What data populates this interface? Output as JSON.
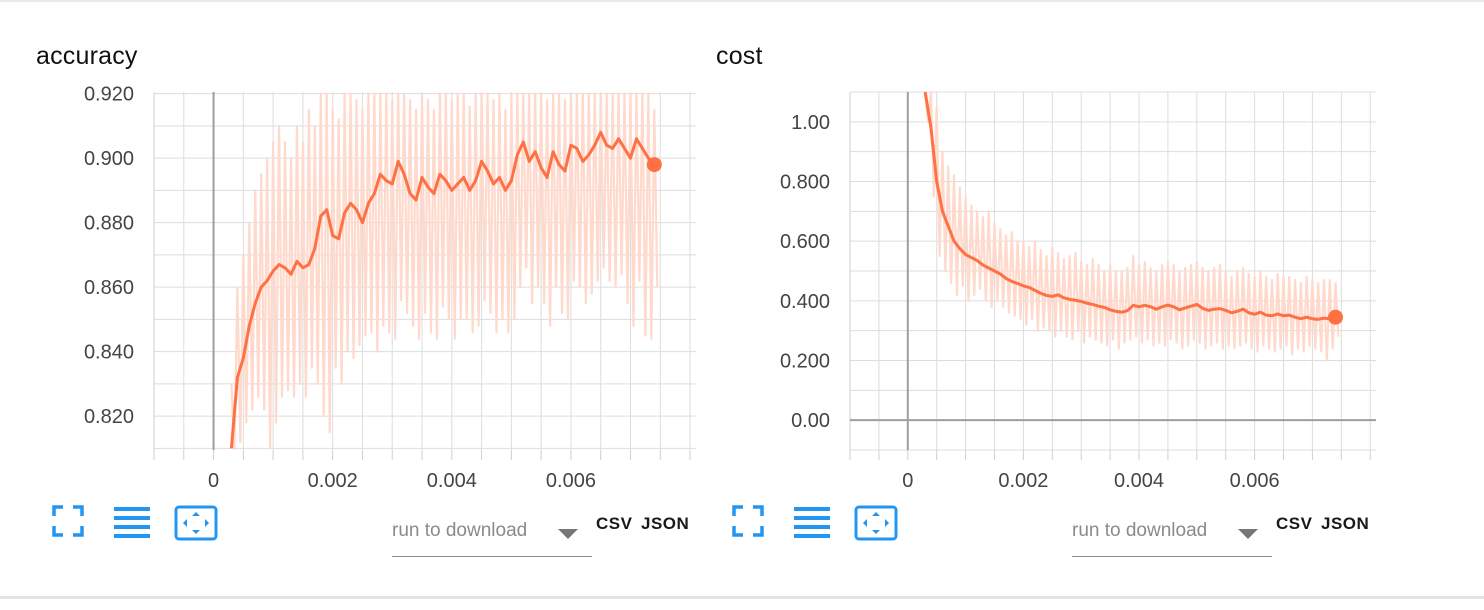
{
  "download": {
    "placeholder": "run to download",
    "csv_label": "CSV",
    "json_label": "JSON"
  },
  "icons": {
    "expand": "fullscreen-icon",
    "toggle_log": "menu-lines-icon",
    "fit_domain": "fit-domain-icon"
  },
  "colors": {
    "series": "#ff7043",
    "series_raw": "#ffd9cc",
    "grid": "#dddddd",
    "zero_axis": "#9e9e9e",
    "icon": "#2196f3"
  },
  "chart_data": [
    {
      "type": "line",
      "title": "accuracy",
      "xlabel": "",
      "ylabel": "",
      "xlim": [
        -0.001,
        0.0081
      ],
      "ylim": [
        0.8095,
        0.9205
      ],
      "x_ticks": [
        0,
        0.002,
        0.004,
        0.006
      ],
      "x_tick_labels": [
        "0",
        "0.002",
        "0.004",
        "0.006"
      ],
      "y_ticks": [
        0.82,
        0.84,
        0.86,
        0.88,
        0.9,
        0.92
      ],
      "y_tick_labels": [
        "0.820",
        "0.840",
        "0.860",
        "0.880",
        "0.900",
        "0.920"
      ],
      "grid": true,
      "series": [
        {
          "x": [
            0.0003,
            0.0004,
            0.0005,
            0.0006,
            0.0007,
            0.0008,
            0.0009,
            0.001,
            0.0011,
            0.0012,
            0.0013,
            0.0014,
            0.0015,
            0.0016,
            0.0017,
            0.0018,
            0.0019,
            0.002,
            0.0021,
            0.0022,
            0.0023,
            0.0024,
            0.0025,
            0.0026,
            0.0027,
            0.0028,
            0.0029,
            0.003,
            0.0031,
            0.0032,
            0.0033,
            0.0034,
            0.0035,
            0.0036,
            0.0037,
            0.0038,
            0.0039,
            0.004,
            0.0041,
            0.0042,
            0.0043,
            0.0044,
            0.0045,
            0.0046,
            0.0047,
            0.0048,
            0.0049,
            0.005,
            0.0051,
            0.0052,
            0.0053,
            0.0054,
            0.0055,
            0.0056,
            0.0057,
            0.0058,
            0.0059,
            0.006,
            0.0061,
            0.0062,
            0.0063,
            0.0064,
            0.0065,
            0.0066,
            0.0067,
            0.0068,
            0.0069,
            0.007,
            0.0071,
            0.0072,
            0.0073,
            0.0074
          ],
          "values": [
            0.81,
            0.832,
            0.838,
            0.848,
            0.855,
            0.86,
            0.862,
            0.865,
            0.867,
            0.866,
            0.864,
            0.868,
            0.866,
            0.867,
            0.872,
            0.882,
            0.884,
            0.876,
            0.875,
            0.883,
            0.886,
            0.884,
            0.88,
            0.886,
            0.889,
            0.895,
            0.893,
            0.892,
            0.899,
            0.895,
            0.889,
            0.887,
            0.894,
            0.891,
            0.889,
            0.895,
            0.893,
            0.89,
            0.892,
            0.894,
            0.89,
            0.893,
            0.899,
            0.896,
            0.892,
            0.894,
            0.89,
            0.893,
            0.901,
            0.905,
            0.899,
            0.902,
            0.897,
            0.894,
            0.902,
            0.898,
            0.896,
            0.904,
            0.903,
            0.899,
            0.901,
            0.904,
            0.908,
            0.904,
            0.903,
            0.906,
            0.903,
            0.9,
            0.906,
            0.903,
            0.9,
            0.898
          ],
          "raw_min": [
            0.8095,
            0.812,
            0.818,
            0.822,
            0.826,
            0.822,
            0.81,
            0.818,
            0.826,
            0.828,
            0.826,
            0.83,
            0.826,
            0.835,
            0.83,
            0.82,
            0.815,
            0.835,
            0.83,
            0.84,
            0.838,
            0.842,
            0.845,
            0.846,
            0.84,
            0.848,
            0.846,
            0.844,
            0.856,
            0.852,
            0.848,
            0.844,
            0.852,
            0.846,
            0.844,
            0.854,
            0.85,
            0.844,
            0.85,
            0.85,
            0.846,
            0.848,
            0.856,
            0.852,
            0.846,
            0.85,
            0.846,
            0.85,
            0.86,
            0.866,
            0.855,
            0.86,
            0.855,
            0.848,
            0.86,
            0.852,
            0.85,
            0.862,
            0.86,
            0.855,
            0.858,
            0.862,
            0.866,
            0.862,
            0.86,
            0.864,
            0.855,
            0.848,
            0.862,
            0.845,
            0.844,
            0.86
          ],
          "raw_max": [
            0.83,
            0.86,
            0.87,
            0.88,
            0.89,
            0.895,
            0.9,
            0.905,
            0.91,
            0.905,
            0.9,
            0.91,
            0.905,
            0.915,
            0.91,
            0.92,
            0.92,
            0.915,
            0.912,
            0.92,
            0.92,
            0.918,
            0.915,
            0.92,
            0.92,
            0.92,
            0.92,
            0.918,
            0.92,
            0.92,
            0.918,
            0.915,
            0.92,
            0.918,
            0.915,
            0.92,
            0.92,
            0.918,
            0.92,
            0.92,
            0.916,
            0.92,
            0.92,
            0.92,
            0.918,
            0.92,
            0.915,
            0.92,
            0.92,
            0.92,
            0.92,
            0.92,
            0.92,
            0.918,
            0.92,
            0.92,
            0.918,
            0.92,
            0.92,
            0.92,
            0.92,
            0.92,
            0.92,
            0.92,
            0.92,
            0.92,
            0.92,
            0.92,
            0.92,
            0.92,
            0.92,
            0.915
          ],
          "last_point": [
            0.0074,
            0.898
          ]
        }
      ]
    },
    {
      "type": "line",
      "title": "cost",
      "xlabel": "",
      "ylabel": "",
      "xlim": [
        -0.001,
        0.0081
      ],
      "ylim": [
        -0.1,
        1.1
      ],
      "x_ticks": [
        0,
        0.002,
        0.004,
        0.006
      ],
      "x_tick_labels": [
        "0",
        "0.002",
        "0.004",
        "0.006"
      ],
      "y_ticks": [
        0,
        0.2,
        0.4,
        0.6,
        0.8,
        1.0
      ],
      "y_tick_labels": [
        "0.00",
        "0.200",
        "0.400",
        "0.600",
        "0.800",
        "1.00"
      ],
      "grid": true,
      "series": [
        {
          "x": [
            0.0003,
            0.0004,
            0.0005,
            0.0006,
            0.0007,
            0.0008,
            0.0009,
            0.001,
            0.0011,
            0.0012,
            0.0013,
            0.0014,
            0.0015,
            0.0016,
            0.0017,
            0.0018,
            0.0019,
            0.002,
            0.0021,
            0.0022,
            0.0023,
            0.0024,
            0.0025,
            0.0026,
            0.0027,
            0.0028,
            0.0029,
            0.003,
            0.0031,
            0.0032,
            0.0033,
            0.0034,
            0.0035,
            0.0036,
            0.0037,
            0.0038,
            0.0039,
            0.004,
            0.0041,
            0.0042,
            0.0043,
            0.0044,
            0.0045,
            0.0046,
            0.0047,
            0.0048,
            0.0049,
            0.005,
            0.0051,
            0.0052,
            0.0053,
            0.0054,
            0.0055,
            0.0056,
            0.0057,
            0.0058,
            0.0059,
            0.006,
            0.0061,
            0.0062,
            0.0063,
            0.0064,
            0.0065,
            0.0066,
            0.0067,
            0.0068,
            0.0069,
            0.007,
            0.0071,
            0.0072,
            0.0073,
            0.0074
          ],
          "values": [
            1.1,
            0.98,
            0.8,
            0.7,
            0.65,
            0.6,
            0.575,
            0.555,
            0.545,
            0.535,
            0.52,
            0.51,
            0.5,
            0.49,
            0.475,
            0.465,
            0.458,
            0.45,
            0.445,
            0.435,
            0.425,
            0.418,
            0.415,
            0.42,
            0.41,
            0.405,
            0.402,
            0.398,
            0.392,
            0.388,
            0.382,
            0.378,
            0.37,
            0.365,
            0.362,
            0.367,
            0.385,
            0.38,
            0.385,
            0.38,
            0.372,
            0.38,
            0.386,
            0.38,
            0.37,
            0.376,
            0.382,
            0.388,
            0.375,
            0.368,
            0.372,
            0.374,
            0.368,
            0.36,
            0.365,
            0.372,
            0.36,
            0.355,
            0.362,
            0.352,
            0.35,
            0.356,
            0.35,
            0.352,
            0.345,
            0.34,
            0.345,
            0.34,
            0.338,
            0.342,
            0.34,
            0.345
          ],
          "raw_min": [
            1.0,
            0.75,
            0.55,
            0.5,
            0.46,
            0.42,
            0.45,
            0.4,
            0.42,
            0.44,
            0.4,
            0.38,
            0.4,
            0.38,
            0.36,
            0.35,
            0.34,
            0.32,
            0.34,
            0.3,
            0.31,
            0.3,
            0.28,
            0.3,
            0.28,
            0.27,
            0.3,
            0.26,
            0.28,
            0.27,
            0.26,
            0.25,
            0.27,
            0.24,
            0.26,
            0.27,
            0.28,
            0.26,
            0.27,
            0.25,
            0.26,
            0.25,
            0.27,
            0.26,
            0.24,
            0.25,
            0.27,
            0.26,
            0.24,
            0.25,
            0.26,
            0.24,
            0.25,
            0.24,
            0.25,
            0.26,
            0.24,
            0.23,
            0.25,
            0.24,
            0.23,
            0.24,
            0.25,
            0.22,
            0.24,
            0.23,
            0.25,
            0.24,
            0.23,
            0.2,
            0.24,
            0.28
          ],
          "raw_max": [
            1.1,
            1.1,
            1.05,
            0.9,
            0.85,
            0.82,
            0.78,
            0.75,
            0.72,
            0.7,
            0.68,
            0.7,
            0.66,
            0.64,
            0.62,
            0.63,
            0.6,
            0.6,
            0.58,
            0.6,
            0.57,
            0.55,
            0.58,
            0.56,
            0.54,
            0.55,
            0.56,
            0.53,
            0.52,
            0.54,
            0.52,
            0.5,
            0.52,
            0.5,
            0.5,
            0.51,
            0.55,
            0.52,
            0.53,
            0.51,
            0.5,
            0.52,
            0.53,
            0.52,
            0.5,
            0.51,
            0.52,
            0.53,
            0.51,
            0.5,
            0.51,
            0.52,
            0.5,
            0.48,
            0.5,
            0.51,
            0.49,
            0.48,
            0.5,
            0.48,
            0.47,
            0.49,
            0.48,
            0.48,
            0.47,
            0.46,
            0.48,
            0.47,
            0.46,
            0.47,
            0.47,
            0.46
          ],
          "last_point": [
            0.0074,
            0.345
          ]
        }
      ]
    }
  ]
}
